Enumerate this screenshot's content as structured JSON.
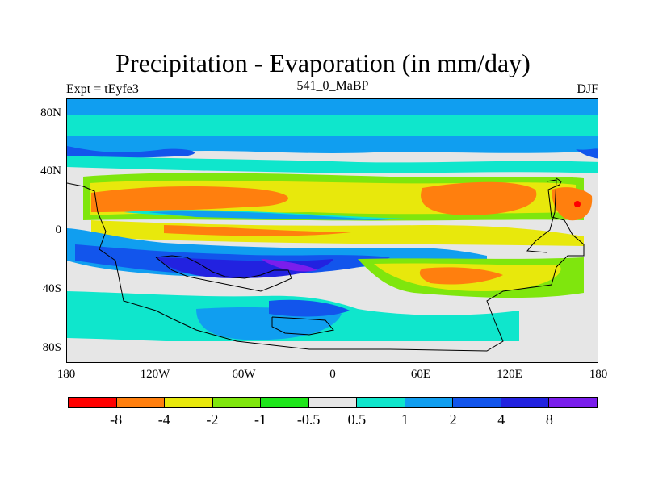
{
  "title": "Precipitation - Evaporation (in mm/day)",
  "left_label": "Expt = tEyfe3",
  "center_label": "541_0_MaBP",
  "right_label": "DJF",
  "lat_labels": [
    "80N",
    "40N",
    "0",
    "40S",
    "80S"
  ],
  "lon_labels": [
    "180",
    "120W",
    "60W",
    "0",
    "60E",
    "120E",
    "180"
  ],
  "colorbar": {
    "colors": [
      "#ff0000",
      "#ff7f0e",
      "#e8e80c",
      "#7fe60d",
      "#1ee61a",
      "#e6e6e6",
      "#0fe6cc",
      "#109ef0",
      "#1255ec",
      "#2222e0",
      "#7a1eec"
    ],
    "labels": [
      "-8",
      "-4",
      "-2",
      "-1",
      "-0.5",
      "0.5",
      "1",
      "2",
      "4",
      "8"
    ]
  },
  "map": {
    "lon_range": [
      -180,
      180
    ],
    "lat_range": [
      -90,
      90
    ]
  }
}
